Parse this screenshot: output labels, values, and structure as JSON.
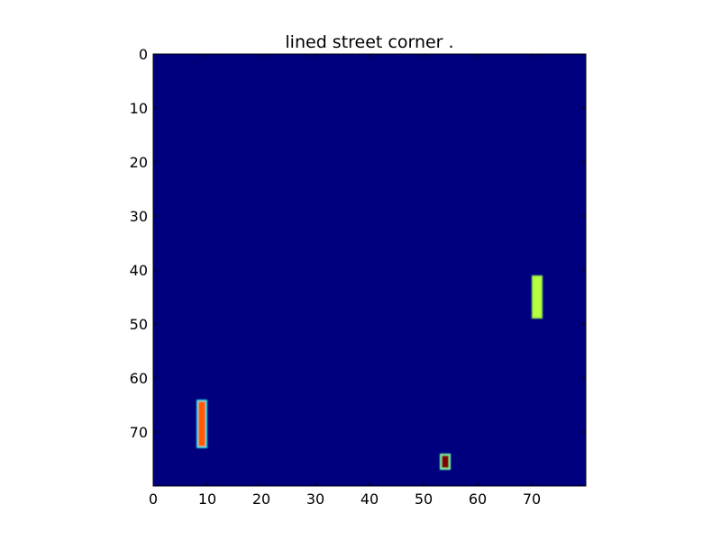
{
  "chart_data": {
    "type": "heatmap",
    "title": "lined street corner .",
    "xlabel": "",
    "ylabel": "",
    "grid_size": [
      80,
      80
    ],
    "xlim": [
      0,
      80
    ],
    "ylim": [
      80,
      0
    ],
    "x_ticks": [
      0,
      10,
      20,
      30,
      40,
      50,
      60,
      70
    ],
    "y_ticks": [
      0,
      10,
      20,
      30,
      40,
      50,
      60,
      70
    ],
    "colormap": "jet",
    "background_color": "#00007f",
    "grid": false,
    "regions": [
      {
        "x": [
          8,
          10
        ],
        "y": [
          64,
          73
        ],
        "core_color": "#ff5a00",
        "edge_color": "#18e6e6"
      },
      {
        "x": [
          53,
          55
        ],
        "y": [
          74,
          77
        ],
        "core_color": "#7f0000",
        "edge_color": "#7cffa0"
      },
      {
        "x": [
          70,
          72
        ],
        "y": [
          41,
          49
        ],
        "core_color": "#b8ff3c",
        "edge_color": "#9cf24a"
      }
    ]
  }
}
